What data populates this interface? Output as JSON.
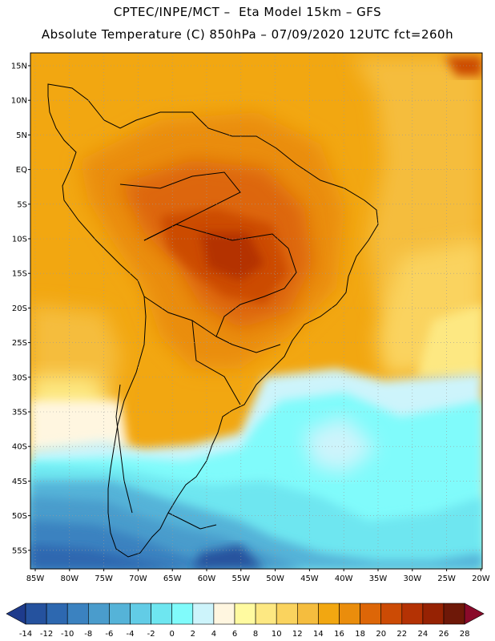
{
  "header": {
    "line1": "CPTEC/INPE/MCT –  Eta Model 15km – GFS",
    "line2": "Absolute Temperature (C) 850hPa – 07/09/2020 12UTC fct=260h"
  },
  "axes": {
    "lat_labels": [
      "15N",
      "10N",
      "5N",
      "EQ",
      "5S",
      "10S",
      "15S",
      "20S",
      "25S",
      "30S",
      "35S",
      "40S",
      "45S",
      "50S",
      "55S"
    ],
    "lon_labels": [
      "85W",
      "80W",
      "75W",
      "70W",
      "65W",
      "60W",
      "55W",
      "50W",
      "45W",
      "40W",
      "35W",
      "30W",
      "25W",
      "20W"
    ]
  },
  "colorbar": {
    "labels": [
      "-14",
      "-12",
      "-10",
      "-8",
      "-6",
      "-4",
      "-2",
      "0",
      "2",
      "4",
      "6",
      "8",
      "10",
      "12",
      "14",
      "16",
      "18",
      "20",
      "22",
      "24",
      "26",
      "28"
    ],
    "colors": [
      "#1e3b8c",
      "#25529e",
      "#2d68b0",
      "#3b82c0",
      "#4a9ccc",
      "#55b3d8",
      "#62cce6",
      "#6ee6f0",
      "#80fbfb",
      "#cdf4fb",
      "#fff6e0",
      "#fffaa0",
      "#fde882",
      "#fad35e",
      "#f5bd3e",
      "#f2a711",
      "#ea8d0c",
      "#dd6607",
      "#cc4b05",
      "#b43204",
      "#962203",
      "#6e1808",
      "#8a0a2a"
    ]
  }
}
